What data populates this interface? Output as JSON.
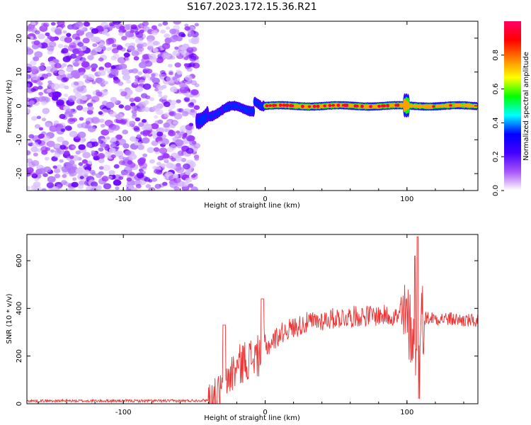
{
  "title": "S167.2023.172.15.36.R21",
  "chart_data": [
    {
      "type": "heatmap",
      "title": "",
      "xlabel": "Height of straight line (km)",
      "ylabel": "Frequency (Hz)",
      "xlim": [
        -168,
        150
      ],
      "ylim": [
        -25,
        25
      ],
      "x_ticks": [
        "-100",
        "0",
        "100"
      ],
      "y_ticks": [
        "-20",
        "-10",
        "0",
        "10",
        "20"
      ],
      "colorbar": {
        "label": "Normalized spectral amplitude",
        "range": [
          0,
          1
        ],
        "ticks": [
          "0.0",
          "0.2",
          "0.4",
          "0.6",
          "0.8"
        ],
        "colormap": [
          "#ffffff",
          "#a855f7",
          "#4400ff",
          "#0000ff",
          "#00ffff",
          "#00ff00",
          "#ffff00",
          "#ff8000",
          "#ff0000",
          "#ff0066"
        ]
      },
      "regions": [
        {
          "x_range": [
            -168,
            -48
          ],
          "freq_range": [
            -25,
            25
          ],
          "amplitude": 0.05,
          "description": "noise"
        },
        {
          "x_range": [
            -48,
            0
          ],
          "freq_center": -2,
          "amplitude": 0.3
        },
        {
          "x_range": [
            0,
            100
          ],
          "freq_center": 0,
          "amplitude": 0.9
        },
        {
          "x_range": [
            100,
            150
          ],
          "freq_center": 0,
          "amplitude": 0.8
        }
      ]
    },
    {
      "type": "line",
      "title": "",
      "xlabel": "Height of straight line (km)",
      "ylabel": "SNR (10 * v/v)",
      "xlim": [
        -168,
        150
      ],
      "ylim": [
        0,
        710
      ],
      "x_ticks": [
        "-100",
        "0",
        "100"
      ],
      "y_ticks": [
        "0",
        "200",
        "400",
        "600"
      ],
      "color": "#ee3333",
      "series": [
        {
          "x": [
            -168,
            -140,
            -100,
            -60,
            -40,
            -35,
            -30,
            -25,
            -20,
            -15,
            -10,
            -5,
            0,
            5,
            10,
            15,
            20,
            30,
            40,
            50,
            60,
            70,
            80,
            90,
            95,
            100,
            104,
            106,
            108,
            110,
            120,
            130,
            140,
            150
          ],
          "values": [
            12,
            12,
            12,
            12,
            15,
            20,
            60,
            120,
            150,
            180,
            190,
            200,
            230,
            260,
            290,
            310,
            320,
            340,
            350,
            360,
            365,
            370,
            370,
            370,
            360,
            350,
            300,
            200,
            60,
            360,
            360,
            355,
            350,
            345
          ]
        }
      ]
    }
  ]
}
